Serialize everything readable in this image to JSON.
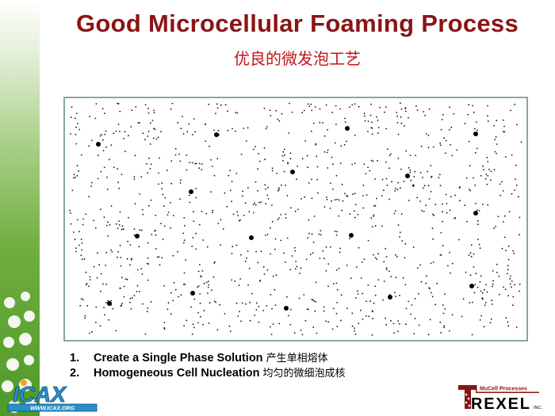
{
  "slide": {
    "title": "Good Microcellular Foaming Process",
    "subtitle": "优良的微发泡工艺",
    "steps": [
      {
        "number": "1.",
        "text": "Create a Single Phase Solution",
        "chinese": "产生单相熔体"
      },
      {
        "number": "2.",
        "text": "Homogeneous Cell Nucleation",
        "chinese": "均匀的微细泡成核"
      }
    ]
  },
  "logos": {
    "icax": {
      "name": "ICAX",
      "url_text": "WWW.ICAX.ORG"
    },
    "trexel": {
      "tagline": "MuCell Processes",
      "name": "TREXEL",
      "suffix": "INC."
    }
  },
  "colors": {
    "title": "#8b1414",
    "subtitle": "#c0141c",
    "frame": "#8aa6a6",
    "strip": "#6fae3e"
  }
}
